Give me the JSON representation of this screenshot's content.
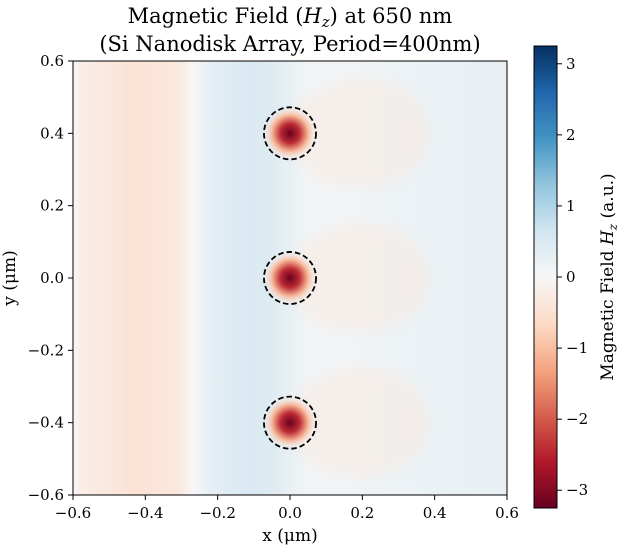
{
  "chart_data": {
    "type": "heatmap",
    "title_line1_prefix": "Magnetic Field (",
    "title_var": "H",
    "title_var_sub": "z",
    "title_line1_suffix": ") at 650 nm",
    "title_line2": "(Si Nanodisk Array, Period=400nm)",
    "xlabel": "x (μm)",
    "ylabel": "y (μm)",
    "xlim": [
      -0.6,
      0.6
    ],
    "ylim": [
      -0.6,
      0.6
    ],
    "xticks": [
      -0.6,
      -0.4,
      -0.2,
      0.0,
      0.2,
      0.4,
      0.6
    ],
    "xtick_labels": [
      "−0.6",
      "−0.4",
      "−0.2",
      "0.0",
      "0.2",
      "0.4",
      "0.6"
    ],
    "yticks": [
      0.6,
      0.4,
      0.2,
      0.0,
      -0.2,
      -0.4,
      -0.6
    ],
    "ytick_labels": [
      "0.6",
      "0.4",
      "0.2",
      "0.0",
      "−0.2",
      "−0.4",
      "−0.6"
    ],
    "colorbar": {
      "label_prefix": "Magnetic Field ",
      "label_var": "H",
      "label_var_sub": "z",
      "label_suffix": " (a.u.)",
      "range": [
        -3.25,
        3.25
      ],
      "ticks": [
        3,
        2,
        1,
        0,
        -1,
        -2,
        -3
      ],
      "tick_labels": [
        "3",
        "2",
        "1",
        "0",
        "−1",
        "−2",
        "−3"
      ],
      "colormap": "RdBu"
    },
    "nanodisks": [
      {
        "x": 0.0,
        "y": 0.4,
        "radius": 0.072
      },
      {
        "x": 0.0,
        "y": 0.0,
        "radius": 0.072
      },
      {
        "x": 0.0,
        "y": -0.4,
        "radius": 0.072
      }
    ],
    "field_profile": {
      "x": [
        -0.6,
        -0.58,
        -0.45,
        -0.35,
        -0.3,
        -0.27,
        -0.22,
        -0.12,
        -0.05,
        0.0,
        0.05,
        0.15,
        0.3,
        0.45,
        0.6
      ],
      "hz": [
        0.0,
        -0.2,
        -0.45,
        -0.42,
        -0.3,
        0.0,
        0.3,
        0.5,
        0.42,
        0.25,
        0.1,
        0.1,
        0.18,
        0.22,
        0.25
      ]
    },
    "disk_peak_hz": -3.25
  }
}
